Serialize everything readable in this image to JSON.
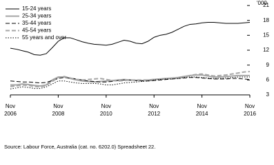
{
  "chart_data": {
    "type": "line",
    "y_unit": "'000",
    "source": "Source: Labour Force, Australia (cat. no. 6202.0) Spreadsheet 22.",
    "x": [
      "2006-11",
      "2007-02",
      "2007-05",
      "2007-08",
      "2007-11",
      "2008-02",
      "2008-05",
      "2008-08",
      "2008-11",
      "2009-02",
      "2009-05",
      "2009-08",
      "2009-11",
      "2010-02",
      "2010-05",
      "2010-08",
      "2010-11",
      "2011-02",
      "2011-05",
      "2011-08",
      "2011-11",
      "2012-02",
      "2012-05",
      "2012-08",
      "2012-11",
      "2013-02",
      "2013-05",
      "2013-08",
      "2013-11",
      "2014-02",
      "2014-05",
      "2014-08",
      "2014-11",
      "2015-02",
      "2015-05",
      "2015-08",
      "2015-11",
      "2016-02",
      "2016-05",
      "2016-08",
      "2016-11"
    ],
    "xticks": [
      {
        "value": "2006-11",
        "month": "Nov",
        "year": "2006"
      },
      {
        "value": "2008-11",
        "month": "Nov",
        "year": "2008"
      },
      {
        "value": "2010-11",
        "month": "Nov",
        "year": "2010"
      },
      {
        "value": "2012-11",
        "month": "Nov",
        "year": "2012"
      },
      {
        "value": "2014-11",
        "month": "Nov",
        "year": "2014"
      },
      {
        "value": "2016-11",
        "month": "Nov",
        "year": "2016"
      }
    ],
    "ylim": [
      3,
      21
    ],
    "yticks": [
      3,
      6,
      9,
      12,
      15,
      18,
      21
    ],
    "series": [
      {
        "name": "15-24 years",
        "color": "#000000",
        "dash": "solid",
        "line_width": 1,
        "values": [
          12.4,
          12.2,
          11.9,
          11.6,
          11.1,
          11.0,
          11.3,
          12.5,
          13.8,
          14.5,
          14.5,
          14.1,
          13.7,
          13.4,
          13.2,
          13.1,
          13.0,
          13.2,
          13.6,
          14.0,
          13.8,
          13.4,
          13.3,
          13.8,
          14.6,
          15.0,
          15.2,
          15.6,
          16.2,
          16.8,
          17.2,
          17.3,
          17.5,
          17.6,
          17.6,
          17.5,
          17.4,
          17.4,
          17.4,
          17.5,
          17.6
        ]
      },
      {
        "name": "25-34 years",
        "color": "#a6a6a6",
        "dash": "solid",
        "line_width": 2,
        "values": [
          5.0,
          5.0,
          5.2,
          5.1,
          4.9,
          4.8,
          5.0,
          6.0,
          6.6,
          6.6,
          6.3,
          6.0,
          5.8,
          5.7,
          5.6,
          5.7,
          5.8,
          5.9,
          6.0,
          6.1,
          6.0,
          5.9,
          5.9,
          6.0,
          6.1,
          6.2,
          6.3,
          6.4,
          6.5,
          6.7,
          6.9,
          7.0,
          7.0,
          6.8,
          6.6,
          6.6,
          6.7,
          6.8,
          6.9,
          6.9,
          6.9
        ]
      },
      {
        "name": "35-44 years",
        "color": "#000000",
        "dash": "dashed",
        "line_width": 1,
        "values": [
          5.8,
          5.7,
          5.6,
          5.6,
          5.5,
          5.4,
          5.5,
          5.9,
          6.3,
          6.5,
          6.4,
          6.2,
          6.0,
          5.8,
          5.7,
          5.6,
          5.6,
          5.7,
          5.9,
          6.0,
          6.0,
          5.9,
          5.8,
          5.8,
          5.9,
          6.0,
          6.1,
          6.2,
          6.3,
          6.4,
          6.5,
          6.5,
          6.4,
          6.3,
          6.2,
          6.2,
          6.2,
          6.3,
          6.3,
          6.2,
          6.1
        ]
      },
      {
        "name": "45-54 years",
        "color": "#a6a6a6",
        "dash": "dashed",
        "line_width": 2,
        "values": [
          4.7,
          4.8,
          5.0,
          4.9,
          4.7,
          4.6,
          4.9,
          5.7,
          6.5,
          6.7,
          6.4,
          6.1,
          6.0,
          6.1,
          6.2,
          6.3,
          6.1,
          5.9,
          5.8,
          5.9,
          6.0,
          6.0,
          6.0,
          6.0,
          6.1,
          6.2,
          6.3,
          6.3,
          6.4,
          6.6,
          6.9,
          7.1,
          7.2,
          7.0,
          6.8,
          6.9,
          7.0,
          7.2,
          7.4,
          7.6,
          7.7
        ]
      },
      {
        "name": "55 years and over",
        "color": "#000000",
        "dash": "dotted",
        "line_width": 1,
        "values": [
          4.2,
          4.4,
          4.6,
          4.5,
          4.3,
          4.3,
          4.6,
          5.2,
          5.8,
          5.8,
          5.6,
          5.4,
          5.3,
          5.3,
          5.3,
          5.2,
          5.0,
          5.0,
          5.2,
          5.4,
          5.5,
          5.6,
          5.7,
          5.8,
          6.0,
          6.1,
          6.2,
          6.2,
          6.3,
          6.5,
          6.6,
          6.6,
          6.5,
          6.4,
          6.3,
          6.3,
          6.4,
          6.5,
          6.6,
          6.6,
          6.6
        ]
      }
    ]
  }
}
